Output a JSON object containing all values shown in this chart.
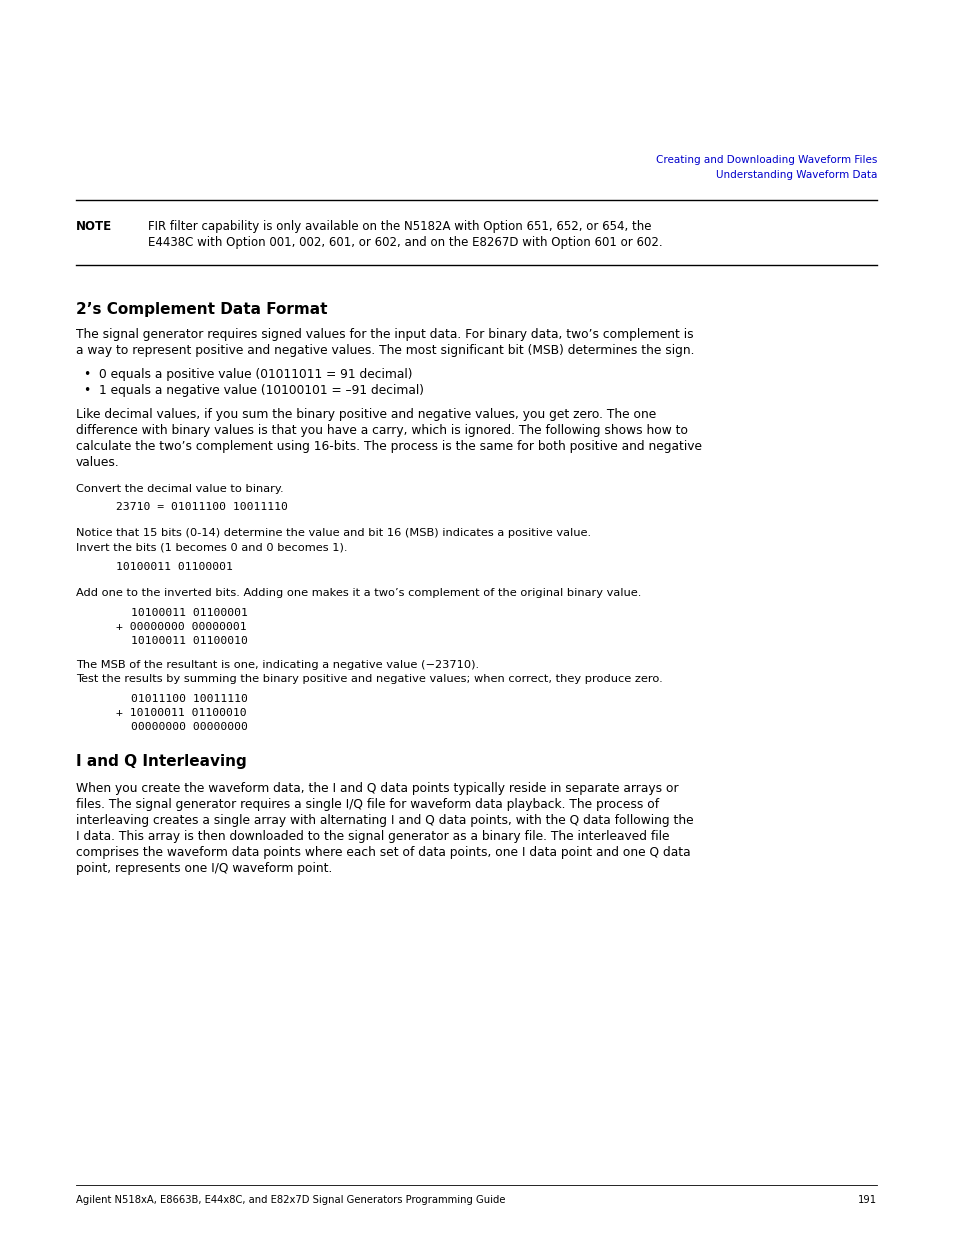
{
  "bg_color": "#ffffff",
  "header_text1": "Creating and Downloading Waveform Files",
  "header_text2": "Understanding Waveform Data",
  "header_color": "#0000cc",
  "note_label": "NOTE",
  "note_text1": "FIR filter capability is only available on the N5182A with Option 651, 652, or 654, the",
  "note_text2": "E4438C with Option 001, 002, 601, or 602, and on the E8267D with Option 601 or 602.",
  "section1_title": "2’s Complement Data Format",
  "section1_para1a": "The signal generator requires signed values for the input data. For binary data, two’s complement is",
  "section1_para1b": "a way to represent positive and negative values. The most significant bit (MSB) determines the sign.",
  "bullet1": "0 equals a positive value (01011011 = 91 decimal)",
  "bullet2": "1 equals a negative value (10100101 = –91 decimal)",
  "section1_para2a": "Like decimal values, if you sum the binary positive and negative values, you get zero. The one",
  "section1_para2b": "difference with binary values is that you have a carry, which is ignored. The following shows how to",
  "section1_para2c": "calculate the two’s complement using 16-bits. The process is the same for both positive and negative",
  "section1_para2d": "values.",
  "convert_label": "Convert the decimal value to binary.",
  "convert_code": "23710 = 01011100 10011110",
  "notice_text1": "Notice that 15 bits (0-14) determine the value and bit 16 (MSB) indicates a positive value.",
  "notice_text2": "Invert the bits (1 becomes 0 and 0 becomes 1).",
  "invert_code": "10100011 01100001",
  "add_label": "Add one to the inverted bits. Adding one makes it a two’s complement of the original binary value.",
  "add_code1": "10100011 01100001",
  "add_code2": "+ 00000000 00000001",
  "add_code3": "10100011 01100010",
  "msb_text1": "The MSB of the resultant is one, indicating a negative value (−23710).",
  "msb_text2": "Test the results by summing the binary positive and negative values; when correct, they produce zero.",
  "test_code1": "01011100 10011110",
  "test_code2": "+ 10100011 01100010",
  "test_code3": "00000000 00000000",
  "section2_title": "I and Q Interleaving",
  "section2_para1": "When you create the waveform data, the I and Q data points typically reside in separate arrays or",
  "section2_para2": "files. The signal generator requires a single I/Q file for waveform data playback. The process of",
  "section2_para3": "interleaving creates a single array with alternating I and Q data points, with the Q data following the",
  "section2_para4": "I data. This array is then downloaded to the signal generator as a binary file. The interleaved file",
  "section2_para5": "comprises the waveform data points where each set of data points, one I data point and one Q data",
  "section2_para6": "point, represents one I/Q waveform point.",
  "footer_text": "Agilent N518xA, E8663B, E44x8C, and E82x7D Signal Generators Programming Guide",
  "page_number": "191",
  "figwidth": 9.54,
  "figheight": 12.35,
  "dpi": 100
}
